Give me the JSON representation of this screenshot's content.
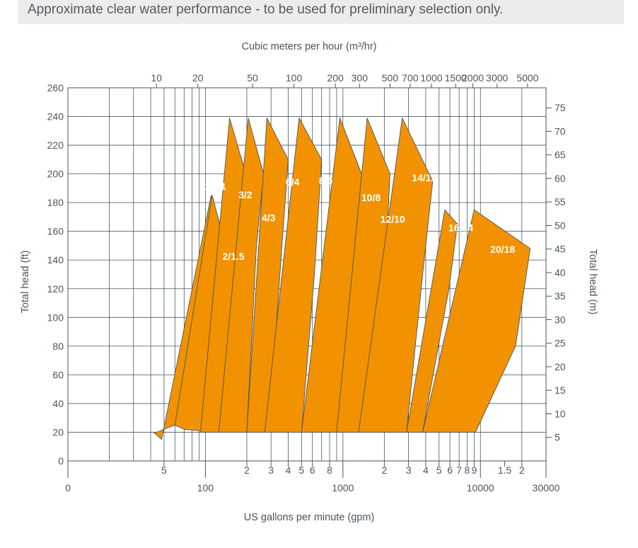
{
  "header": {
    "text": "Approximate clear water performance - to be used for preliminary selection only."
  },
  "colors": {
    "curve_fill": "#f29200",
    "curve_stroke": "#4a5660",
    "grid": "#4a5660",
    "axis_text": "#4a5660",
    "curve_label": "#ffffff",
    "header_bg": "#ececec"
  },
  "chart_data": {
    "type": "area",
    "title": "",
    "grid": true,
    "x_scale": "log",
    "xlabel_bottom": "US gallons per minute (gpm)",
    "xlabel_top": "Cubic meters per hour (m³/hr)",
    "ylabel_left": "Total head (ft)",
    "ylabel_right": "Total head (m)",
    "xlim_gpm": [
      10,
      30000
    ],
    "ylim_ft": [
      0,
      260
    ],
    "y_ticks_ft": [
      0,
      20,
      40,
      60,
      80,
      100,
      120,
      140,
      160,
      180,
      200,
      220,
      240,
      260
    ],
    "y_ticks_m": [
      5,
      10,
      15,
      20,
      25,
      30,
      35,
      40,
      45,
      50,
      55,
      60,
      65,
      70,
      75
    ],
    "top_ticks_m3hr": [
      10,
      20,
      50,
      100,
      200,
      300,
      500,
      700,
      1000,
      1500,
      2000,
      3000,
      5000
    ],
    "bottom_minor_labels": [
      {
        "value": 50,
        "label": "5"
      },
      {
        "value": 200,
        "label": "2"
      },
      {
        "value": 300,
        "label": "3"
      },
      {
        "value": 400,
        "label": "4"
      },
      {
        "value": 500,
        "label": "5"
      },
      {
        "value": 600,
        "label": "6"
      },
      {
        "value": 800,
        "label": "8"
      },
      {
        "value": 2000,
        "label": "2"
      },
      {
        "value": 3000,
        "label": "3"
      },
      {
        "value": 4000,
        "label": "4"
      },
      {
        "value": 5000,
        "label": "5"
      },
      {
        "value": 6000,
        "label": "6"
      },
      {
        "value": 7000,
        "label": "7"
      },
      {
        "value": 8000,
        "label": "8"
      },
      {
        "value": 9000,
        "label": "9"
      },
      {
        "value": 15000,
        "label": "1.5"
      },
      {
        "value": 20000,
        "label": "2"
      }
    ],
    "bottom_major_labels": [
      {
        "value": 10,
        "label": "0"
      },
      {
        "value": 100,
        "label": "100"
      },
      {
        "value": 1000,
        "label": "1000"
      },
      {
        "value": 10000,
        "label": "10000"
      },
      {
        "value": 30000,
        "label": "30000"
      }
    ],
    "series": [
      {
        "name": "1.5/1",
        "label_at": [
          118,
          189
        ],
        "outline": [
          [
            42,
            20
          ],
          [
            48,
            15
          ],
          [
            110,
            185
          ],
          [
            130,
            145
          ],
          [
            60,
            25
          ],
          [
            44,
            20
          ]
        ]
      },
      {
        "name": "2/1.5",
        "label_at": [
          160,
          140
        ],
        "outline": [
          [
            60,
            25
          ],
          [
            112,
            185
          ],
          [
            140,
            150
          ],
          [
            150,
            140
          ],
          [
            130,
            45
          ],
          [
            120,
            20
          ],
          [
            70,
            22
          ]
        ]
      },
      {
        "name": "3/2",
        "label_at": [
          195,
          183
        ],
        "outline": [
          [
            92,
            20
          ],
          [
            150,
            239
          ],
          [
            190,
            205
          ],
          [
            200,
            130
          ],
          [
            180,
            20
          ]
        ]
      },
      {
        "name": "4/3",
        "label_at": [
          288,
          167
        ],
        "outline": [
          [
            125,
            20
          ],
          [
            205,
            239
          ],
          [
            265,
            200
          ],
          [
            235,
            150
          ],
          [
            200,
            20
          ]
        ]
      },
      {
        "name": "6/4",
        "label_at": [
          430,
          192
        ],
        "outline": [
          [
            200,
            20
          ],
          [
            280,
            239
          ],
          [
            400,
            210
          ],
          [
            360,
            150
          ],
          [
            290,
            20
          ]
        ]
      },
      {
        "name": "8/6",
        "label_at": [
          750,
          193
        ],
        "outline": [
          [
            270,
            20
          ],
          [
            480,
            239
          ],
          [
            700,
            210
          ],
          [
            620,
            130
          ],
          [
            500,
            20
          ]
        ]
      },
      {
        "name": "10/8",
        "label_at": [
          1600,
          181
        ],
        "outline": [
          [
            500,
            20
          ],
          [
            950,
            239
          ],
          [
            1500,
            190
          ],
          [
            1400,
            120
          ],
          [
            1150,
            20
          ]
        ]
      },
      {
        "name": "12/10",
        "label_at": [
          2300,
          166
        ],
        "outline": [
          [
            900,
            20
          ],
          [
            1500,
            239
          ],
          [
            2200,
            200
          ],
          [
            2000,
            120
          ],
          [
            1650,
            20
          ]
        ]
      },
      {
        "name": "14/12",
        "label_at": [
          3900,
          195
        ],
        "outline": [
          [
            1300,
            20
          ],
          [
            2700,
            239
          ],
          [
            4500,
            195
          ],
          [
            3800,
            130
          ],
          [
            2900,
            20
          ]
        ]
      },
      {
        "name": "16/14",
        "label_at": [
          7200,
          160
        ],
        "outline": [
          [
            2900,
            20
          ],
          [
            5500,
            175
          ],
          [
            6800,
            165
          ],
          [
            5900,
            120
          ],
          [
            3800,
            20
          ]
        ]
      },
      {
        "name": "20/18",
        "label_at": [
          14500,
          145
        ],
        "outline": [
          [
            3800,
            20
          ],
          [
            9000,
            175
          ],
          [
            23000,
            148
          ],
          [
            18000,
            80
          ],
          [
            9200,
            20
          ]
        ]
      }
    ]
  }
}
